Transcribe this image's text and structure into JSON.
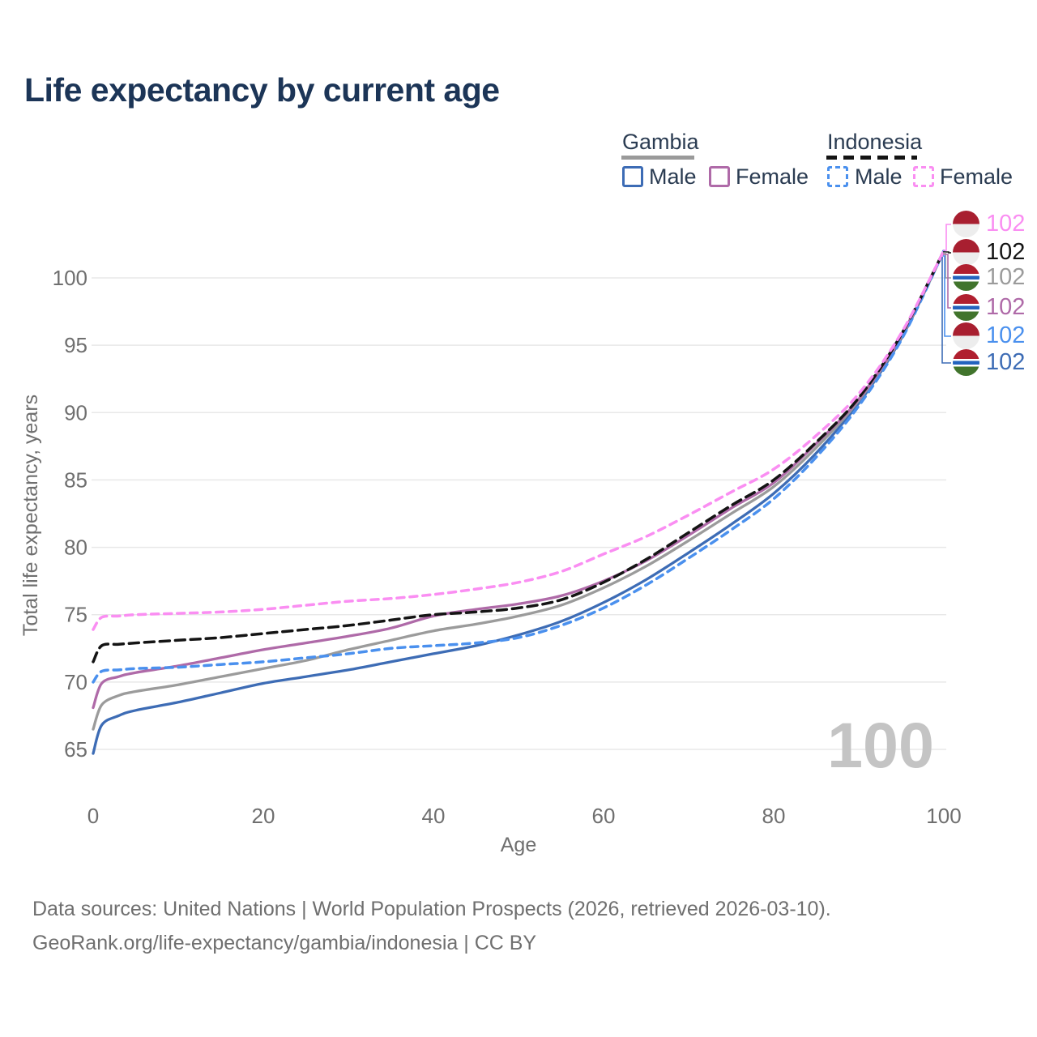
{
  "title": "Life expectancy by current age",
  "watermark": "100",
  "legend": {
    "groups": [
      {
        "label": "Gambia",
        "line_style": "solid",
        "underline_color": "#9a9a9a",
        "items": [
          {
            "label": "Male",
            "color": "#3d6cb5"
          },
          {
            "label": "Female",
            "color": "#af6aa8"
          }
        ]
      },
      {
        "label": "Indonesia",
        "line_style": "dashed",
        "underline_color": "#141414",
        "items": [
          {
            "label": "Male",
            "color": "#4a90ee"
          },
          {
            "label": "Female",
            "color": "#fa8ef2"
          }
        ]
      }
    ]
  },
  "chart_data": {
    "type": "line",
    "title": "Life expectancy by current age",
    "xlabel": "Age",
    "ylabel": "Total life expectancy, years",
    "xlim": [
      0,
      100
    ],
    "ylim": [
      64,
      102.5
    ],
    "xticks": [
      0,
      20,
      40,
      60,
      80,
      100
    ],
    "yticks": [
      65,
      70,
      75,
      80,
      85,
      90,
      95,
      100
    ],
    "grid": "horizontal-only",
    "legend_position": "top-right",
    "ages": [
      0,
      1,
      3,
      5,
      10,
      15,
      20,
      25,
      30,
      35,
      40,
      45,
      50,
      55,
      60,
      65,
      70,
      75,
      80,
      85,
      90,
      95,
      100
    ],
    "series": [
      {
        "name": "Gambia Male",
        "country": "Gambia",
        "sex": "Male",
        "color": "#3d6cb5",
        "dashed": false,
        "values": [
          64.7,
          66.8,
          67.5,
          67.9,
          68.5,
          69.2,
          69.9,
          70.4,
          70.9,
          71.5,
          72.1,
          72.7,
          73.5,
          74.5,
          75.9,
          77.6,
          79.6,
          81.7,
          84.0,
          87.0,
          90.7,
          95.5,
          102
        ]
      },
      {
        "name": "Gambia Both sexes",
        "country": "Gambia",
        "sex": "All",
        "color": "#9b9b9b",
        "dashed": false,
        "values": [
          66.5,
          68.3,
          69.0,
          69.3,
          69.8,
          70.4,
          71.0,
          71.6,
          72.4,
          73.1,
          73.8,
          74.3,
          74.9,
          75.7,
          77.0,
          78.6,
          80.5,
          82.5,
          84.5,
          87.4,
          90.9,
          95.6,
          102
        ]
      },
      {
        "name": "Gambia Female",
        "country": "Gambia",
        "sex": "Female",
        "color": "#af6aa8",
        "dashed": false,
        "values": [
          68.1,
          69.9,
          70.4,
          70.7,
          71.2,
          71.8,
          72.4,
          72.9,
          73.4,
          74.0,
          74.9,
          75.4,
          75.8,
          76.4,
          77.5,
          79.0,
          80.9,
          82.9,
          84.8,
          87.7,
          91.0,
          95.7,
          102
        ]
      },
      {
        "name": "Indonesia Male",
        "country": "Indonesia",
        "sex": "Male",
        "color": "#4a90ee",
        "dashed": true,
        "values": [
          70.0,
          70.8,
          70.9,
          71.0,
          71.1,
          71.3,
          71.5,
          71.8,
          72.1,
          72.5,
          72.7,
          72.9,
          73.3,
          74.2,
          75.5,
          77.2,
          79.2,
          81.3,
          83.6,
          86.7,
          90.5,
          95.4,
          102
        ]
      },
      {
        "name": "Indonesia Both sexes",
        "country": "Indonesia",
        "sex": "All",
        "color": "#141414",
        "dashed": true,
        "values": [
          71.5,
          72.7,
          72.8,
          72.9,
          73.1,
          73.3,
          73.6,
          73.9,
          74.2,
          74.6,
          75.0,
          75.2,
          75.5,
          76.1,
          77.4,
          79.1,
          81.1,
          83.1,
          85.0,
          87.8,
          91.1,
          95.8,
          102
        ]
      },
      {
        "name": "Indonesia Female",
        "country": "Indonesia",
        "sex": "Female",
        "color": "#fa8ef2",
        "dashed": true,
        "values": [
          73.9,
          74.8,
          74.9,
          75.0,
          75.1,
          75.2,
          75.4,
          75.7,
          76.0,
          76.2,
          76.5,
          76.9,
          77.4,
          78.2,
          79.5,
          80.8,
          82.4,
          84.1,
          85.8,
          88.3,
          91.4,
          95.9,
          102
        ]
      }
    ]
  },
  "end_labels": [
    {
      "value": "102",
      "color": "#fa8ef2",
      "flag": "indonesia",
      "series": "Indonesia Female"
    },
    {
      "value": "102",
      "color": "#141414",
      "flag": "indonesia",
      "series": "Indonesia Both sexes"
    },
    {
      "value": "102",
      "color": "#9b9b9b",
      "flag": "gambia",
      "series": "Gambia Both sexes"
    },
    {
      "value": "102",
      "color": "#af6aa8",
      "flag": "gambia",
      "series": "Gambia Female"
    },
    {
      "value": "102",
      "color": "#4a90ee",
      "flag": "indonesia",
      "series": "Indonesia Male"
    },
    {
      "value": "102",
      "color": "#3d6cb5",
      "flag": "gambia",
      "series": "Gambia Male"
    }
  ],
  "footer": {
    "line1": "Data sources: United Nations | World Population Prospects (2026, retrieved 2026-03-10).",
    "line2": "GeoRank.org/life-expectancy/gambia/indonesia | CC BY"
  }
}
